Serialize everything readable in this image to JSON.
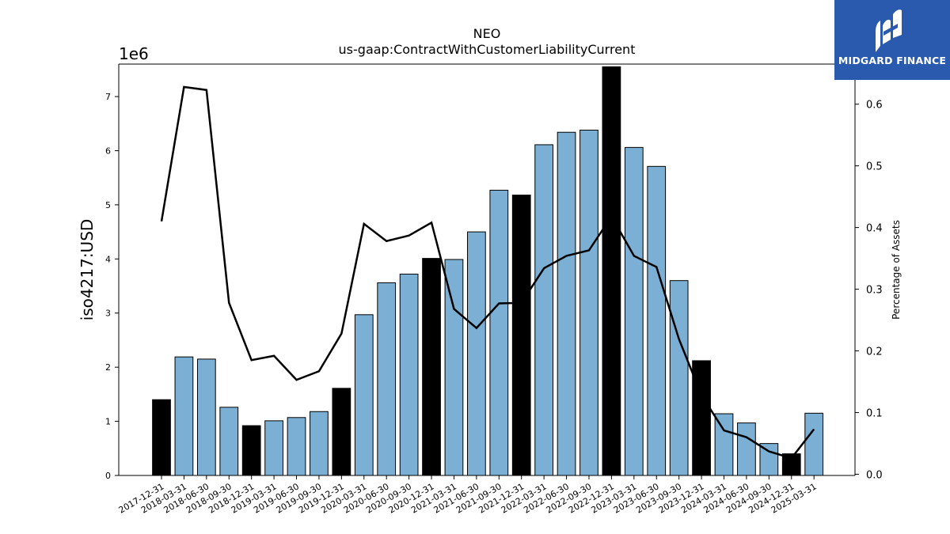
{
  "chart_data": {
    "type": "bar",
    "title": "NEO",
    "subtitle": "us-gaap:ContractWithCustomerLiabilityCurrent",
    "ylabel": "iso4217:USD",
    "y2label": "Percentage of Assets",
    "y_offset_label": "1e6",
    "categories": [
      "2017-12-31",
      "2018-03-31",
      "2018-06-30",
      "2018-09-30",
      "2018-12-31",
      "2019-03-31",
      "2019-06-30",
      "2019-09-30",
      "2019-12-31",
      "2020-03-31",
      "2020-06-30",
      "2020-09-30",
      "2020-12-31",
      "2021-03-31",
      "2021-06-30",
      "2021-09-30",
      "2021-12-31",
      "2022-03-31",
      "2022-06-30",
      "2022-09-30",
      "2022-12-31",
      "2023-03-31",
      "2023-06-30",
      "2023-09-30",
      "2023-12-31",
      "2024-03-31",
      "2024-06-30",
      "2024-09-30",
      "2024-12-31",
      "2025-03-31"
    ],
    "values": [
      1400000,
      2190000,
      2150000,
      1260000,
      920000,
      1010000,
      1070000,
      1180000,
      1610000,
      2970000,
      3560000,
      3720000,
      4010000,
      3990000,
      4500000,
      5270000,
      5180000,
      6110000,
      6340000,
      6380000,
      7550000,
      6060000,
      5710000,
      3600000,
      2120000,
      1140000,
      970000,
      590000,
      400000,
      1150000
    ],
    "year_end": [
      true,
      false,
      false,
      false,
      true,
      false,
      false,
      false,
      true,
      false,
      false,
      false,
      true,
      false,
      false,
      false,
      true,
      false,
      false,
      false,
      true,
      false,
      false,
      false,
      true,
      false,
      false,
      false,
      true,
      false
    ],
    "pct_of_assets": [
      0.41,
      0.628,
      0.623,
      0.278,
      0.185,
      0.192,
      0.153,
      0.167,
      0.228,
      0.406,
      0.378,
      0.387,
      0.408,
      0.268,
      0.237,
      0.277,
      0.278,
      0.334,
      0.354,
      0.363,
      0.418,
      0.354,
      0.336,
      0.219,
      0.128,
      0.071,
      0.06,
      0.037,
      0.026,
      0.073
    ],
    "ylim": [
      0,
      7600000
    ],
    "y2lim": [
      -0.002,
      0.665
    ],
    "y_ticks": [
      0,
      1,
      2,
      3,
      4,
      5,
      6,
      7
    ],
    "y2_ticks": [
      "0.0",
      "0.1",
      "0.2",
      "0.3",
      "0.4",
      "0.5",
      "0.6"
    ],
    "colors": {
      "bar": "#7bafd4",
      "bar_year_end": "#000000",
      "line": "#000000"
    }
  },
  "logo": {
    "text": "MIDGARD FINANCE"
  }
}
